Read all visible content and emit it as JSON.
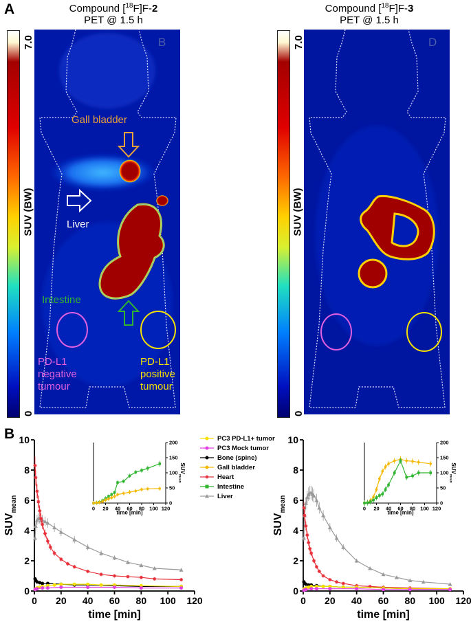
{
  "panel_a": {
    "letter": "A",
    "left": {
      "title_line1_prefix": "Compound [",
      "title_sup": "18",
      "title_line1_mid": "F]F-",
      "title_bold": "2",
      "title_line2": "PET @ 1.5 h",
      "corner_letter": "B",
      "colorbar_max": "7.0",
      "colorbar_min": "0",
      "colorbar_label": "SUV (BW)",
      "annotations": {
        "gall_bladder": "Gall bladder",
        "liver": "Liver",
        "intestine": "Intestine",
        "neg_tumour_line1": "PD-L1",
        "neg_tumour_line2": "negative",
        "neg_tumour_line3": "tumour",
        "pos_tumour_line1": "PD-L1",
        "pos_tumour_line2": "positive",
        "pos_tumour_line3": "tumour"
      }
    },
    "right": {
      "title_line1_prefix": "Compound [",
      "title_sup": "18",
      "title_line1_mid": "F]F-",
      "title_bold": "3",
      "title_line2": "PET @ 1.5 h",
      "corner_letter": "D",
      "colorbar_max": "7.0",
      "colorbar_min": "0",
      "colorbar_label": "SUV (BW)"
    }
  },
  "panel_b": {
    "letter": "B",
    "legend": [
      {
        "label": "PC3 PD-L1+ tumor",
        "color": "#f5e100",
        "marker": "circle"
      },
      {
        "label": "PC3 Mock tumor",
        "color": "#e040e0",
        "marker": "circle"
      },
      {
        "label": "Bone (spine)",
        "color": "#000000",
        "marker": "circle"
      },
      {
        "label": "Gall bladder",
        "color": "#f5b800",
        "marker": "circle"
      },
      {
        "label": "Heart",
        "color": "#e8303a",
        "marker": "star"
      },
      {
        "label": "Intestine",
        "color": "#2fb52f",
        "marker": "square"
      },
      {
        "label": "Liver",
        "color": "#9a9a9a",
        "marker": "triangle"
      }
    ]
  },
  "colors": {
    "pd_l1_pos": "#f5e100",
    "mock": "#e040e0",
    "bone": "#000000",
    "gall": "#f5b800",
    "heart": "#e8303a",
    "intestine": "#2fb52f",
    "liver": "#9a9a9a",
    "annot_gall": "#e8a23a",
    "annot_liver": "#ffffff",
    "annot_intestine": "#2fb52f",
    "annot_neg": "#e060e0",
    "annot_pos": "#f5e100"
  },
  "chart_data": [
    {
      "id": "left-main",
      "type": "line",
      "title": "",
      "xlabel": "time [min]",
      "ylabel": "SUVmean",
      "ylabel_main": "SUV",
      "ylabel_sub": "mean",
      "xlim": [
        0,
        120
      ],
      "ylim": [
        0,
        10
      ],
      "xticks": [
        0,
        20,
        40,
        60,
        80,
        100,
        120
      ],
      "yticks": [
        0,
        2,
        4,
        6,
        8,
        10
      ],
      "series": [
        {
          "name": "Liver",
          "x": [
            0.5,
            1,
            2,
            3,
            4,
            5,
            6,
            8,
            10,
            15,
            20,
            30,
            40,
            50,
            60,
            70,
            80,
            90,
            110
          ],
          "y": [
            3.5,
            4.3,
            4.7,
            4.8,
            4.8,
            4.7,
            4.7,
            4.6,
            4.5,
            4.2,
            3.9,
            3.4,
            2.9,
            2.5,
            2.2,
            1.9,
            1.7,
            1.5,
            1.4
          ]
        },
        {
          "name": "Heart",
          "x": [
            0.5,
            1,
            2,
            3,
            4,
            5,
            6,
            8,
            10,
            12,
            15,
            20,
            25,
            30,
            40,
            50,
            60,
            70,
            80,
            90,
            110
          ],
          "y": [
            8.3,
            7.5,
            6.6,
            5.9,
            5.3,
            4.8,
            4.4,
            3.8,
            3.3,
            2.9,
            2.5,
            2.1,
            1.8,
            1.6,
            1.3,
            1.1,
            1.0,
            0.95,
            0.9,
            0.8,
            0.75
          ]
        },
        {
          "name": "Bone (spine)",
          "x": [
            0.5,
            1,
            2,
            4,
            6,
            10,
            20,
            30,
            40,
            60,
            80,
            110
          ],
          "y": [
            0.8,
            0.7,
            0.6,
            0.55,
            0.5,
            0.5,
            0.45,
            0.4,
            0.4,
            0.35,
            0.3,
            0.3
          ]
        },
        {
          "name": "PC3 PD-L1+ tumor",
          "x": [
            0.5,
            1,
            2,
            4,
            6,
            10,
            15,
            20,
            30,
            40,
            50,
            60,
            80,
            110
          ],
          "y": [
            0.1,
            0.15,
            0.2,
            0.25,
            0.3,
            0.35,
            0.4,
            0.45,
            0.45,
            0.45,
            0.4,
            0.4,
            0.35,
            0.3
          ]
        },
        {
          "name": "PC3 Mock tumor",
          "x": [
            0.5,
            2,
            6,
            10,
            20,
            40,
            60,
            80,
            110
          ],
          "y": [
            0.1,
            0.15,
            0.2,
            0.2,
            0.25,
            0.25,
            0.25,
            0.2,
            0.2
          ]
        }
      ]
    },
    {
      "id": "left-inset",
      "type": "line",
      "xlabel": "time [min]",
      "ylabel": "SUVmean",
      "ylabel_main": "SUV",
      "ylabel_sub": "mean",
      "xlim": [
        0,
        120
      ],
      "ylim": [
        0,
        200
      ],
      "xticks": [
        0,
        20,
        40,
        60,
        80,
        100,
        120
      ],
      "yticks": [
        0,
        50,
        100,
        150,
        200
      ],
      "series": [
        {
          "name": "Intestine",
          "x": [
            0,
            5,
            10,
            15,
            20,
            25,
            30,
            35,
            40,
            50,
            60,
            70,
            80,
            90,
            110
          ],
          "y": [
            0,
            1,
            3,
            8,
            15,
            22,
            28,
            35,
            68,
            72,
            90,
            102,
            108,
            115,
            130
          ]
        },
        {
          "name": "Gall bladder",
          "x": [
            0,
            5,
            10,
            15,
            20,
            25,
            30,
            35,
            40,
            50,
            60,
            70,
            80,
            90,
            110
          ],
          "y": [
            0,
            1,
            2,
            5,
            10,
            14,
            18,
            22,
            28,
            32,
            36,
            40,
            45,
            47,
            48
          ]
        }
      ]
    },
    {
      "id": "right-main",
      "type": "line",
      "xlabel": "time [min]",
      "ylabel": "SUVmean",
      "ylabel_main": "SUV",
      "ylabel_sub": "mean",
      "xlim": [
        0,
        120
      ],
      "ylim": [
        0,
        10
      ],
      "xticks": [
        0,
        20,
        40,
        60,
        80,
        100,
        120
      ],
      "yticks": [
        0,
        2,
        4,
        6,
        8,
        10
      ],
      "series": [
        {
          "name": "Liver",
          "x": [
            0.5,
            1,
            2,
            3,
            4,
            5,
            6,
            7,
            8,
            10,
            12,
            15,
            20,
            25,
            30,
            40,
            50,
            60,
            70,
            80,
            90,
            110
          ],
          "y": [
            3.5,
            5.0,
            5.8,
            6.2,
            6.4,
            6.5,
            6.5,
            6.4,
            6.3,
            6.0,
            5.5,
            5.0,
            4.2,
            3.5,
            2.9,
            2.0,
            1.5,
            1.1,
            0.9,
            0.7,
            0.6,
            0.45
          ]
        },
        {
          "name": "Heart",
          "x": [
            0.5,
            1,
            2,
            3,
            4,
            5,
            6,
            8,
            10,
            12,
            15,
            20,
            25,
            30,
            40,
            50,
            60,
            80,
            110
          ],
          "y": [
            5.5,
            5.0,
            4.3,
            3.7,
            3.2,
            2.8,
            2.5,
            2.0,
            1.6,
            1.3,
            1.0,
            0.75,
            0.6,
            0.5,
            0.35,
            0.3,
            0.25,
            0.2,
            0.15
          ]
        },
        {
          "name": "Bone (spine)",
          "x": [
            0.5,
            1,
            2,
            4,
            6,
            10,
            15,
            20,
            30,
            40,
            60,
            80,
            110
          ],
          "y": [
            0.6,
            0.5,
            0.45,
            0.4,
            0.4,
            0.35,
            0.3,
            0.3,
            0.25,
            0.25,
            0.2,
            0.15,
            0.1
          ]
        },
        {
          "name": "PC3 PD-L1+ tumor",
          "x": [
            0.5,
            1,
            2,
            4,
            6,
            10,
            15,
            20,
            30,
            40,
            60,
            80,
            110
          ],
          "y": [
            0.1,
            0.15,
            0.2,
            0.25,
            0.3,
            0.3,
            0.3,
            0.3,
            0.25,
            0.25,
            0.2,
            0.15,
            0.15
          ]
        },
        {
          "name": "PC3 Mock tumor",
          "x": [
            0.5,
            2,
            6,
            10,
            20,
            40,
            60,
            80,
            110
          ],
          "y": [
            0.05,
            0.1,
            0.15,
            0.15,
            0.15,
            0.15,
            0.1,
            0.1,
            0.1
          ]
        }
      ]
    },
    {
      "id": "right-inset",
      "type": "line",
      "xlabel": "time [min]",
      "ylabel": "SUVmean",
      "ylabel_main": "SUV",
      "ylabel_sub": "mean",
      "xlim": [
        0,
        120
      ],
      "ylim": [
        0,
        200
      ],
      "xticks": [
        0,
        20,
        40,
        60,
        80,
        100,
        120
      ],
      "yticks": [
        0,
        50,
        100,
        150,
        200
      ],
      "series": [
        {
          "name": "Gall bladder",
          "x": [
            0,
            5,
            10,
            15,
            20,
            25,
            30,
            35,
            40,
            50,
            60,
            70,
            80,
            90,
            110
          ],
          "y": [
            0,
            2,
            8,
            20,
            45,
            80,
            105,
            120,
            130,
            140,
            145,
            140,
            138,
            135,
            130
          ]
        },
        {
          "name": "Intestine",
          "x": [
            0,
            5,
            10,
            15,
            20,
            25,
            30,
            35,
            40,
            50,
            60,
            70,
            80,
            90,
            110
          ],
          "y": [
            0,
            1,
            4,
            10,
            18,
            25,
            30,
            45,
            60,
            100,
            140,
            85,
            90,
            100,
            100
          ]
        }
      ]
    }
  ]
}
